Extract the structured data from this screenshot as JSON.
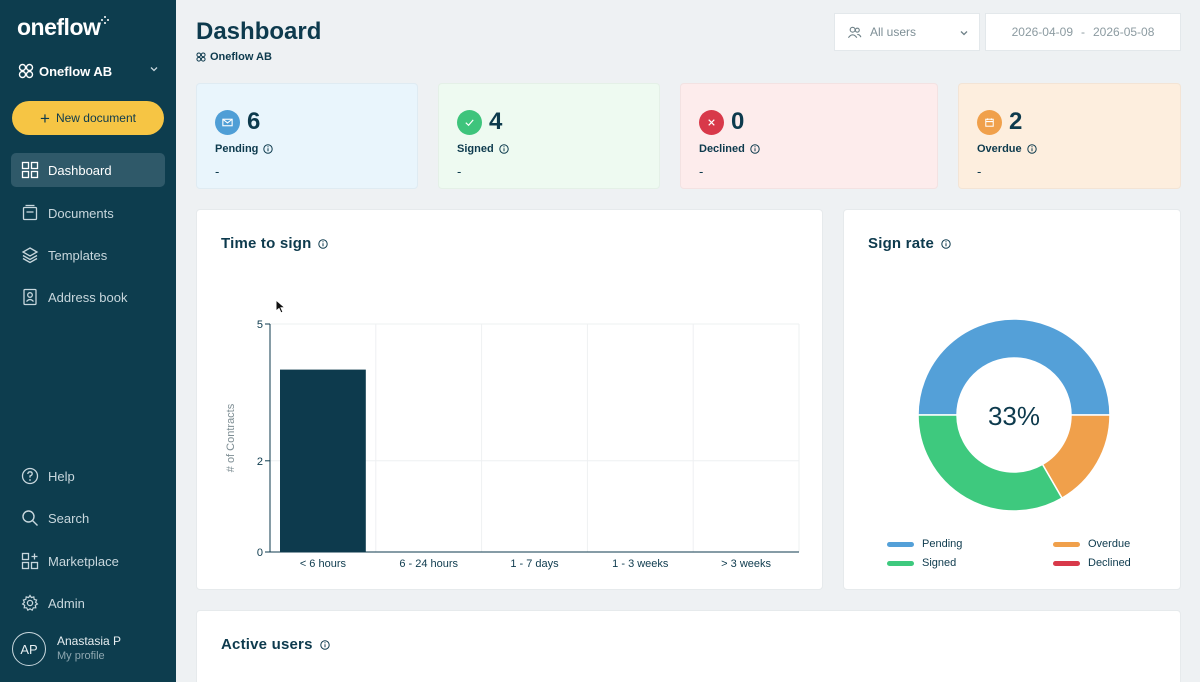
{
  "brand": {
    "logo_text": "oneflow"
  },
  "sidebar": {
    "org_name": "Oneflow AB",
    "new_document_label": "New document",
    "nav": [
      {
        "label": "Dashboard",
        "icon": "dashboard-icon",
        "active": true
      },
      {
        "label": "Documents",
        "icon": "documents-icon"
      },
      {
        "label": "Templates",
        "icon": "templates-icon"
      },
      {
        "label": "Address book",
        "icon": "address-book-icon"
      }
    ],
    "bottom_nav": [
      {
        "label": "Help",
        "icon": "help-icon"
      },
      {
        "label": "Search",
        "icon": "search-icon"
      },
      {
        "label": "Marketplace",
        "icon": "marketplace-icon"
      },
      {
        "label": "Admin",
        "icon": "gear-icon"
      }
    ],
    "profile": {
      "initials": "AP",
      "name": "Anastasia P",
      "subtitle": "My profile"
    }
  },
  "header": {
    "title": "Dashboard",
    "subtitle": "Oneflow AB",
    "users_filter": "All users",
    "date_from": "2026-04-09",
    "date_separator": "-",
    "date_to": "2026-05-08"
  },
  "stats": [
    {
      "count": "6",
      "label": "Pending",
      "sub": "-",
      "color": "#4f9ed6",
      "bg": "#e9f5fc"
    },
    {
      "count": "4",
      "label": "Signed",
      "sub": "-",
      "color": "#3ec47c",
      "bg": "#eefaf1"
    },
    {
      "count": "0",
      "label": "Declined",
      "sub": "-",
      "color": "#d8394a",
      "bg": "#fdecec"
    },
    {
      "count": "2",
      "label": "Overdue",
      "sub": "-",
      "color": "#f0a04b",
      "bg": "#fdeede"
    }
  ],
  "time_to_sign": {
    "title": "Time to sign",
    "chart_data": {
      "type": "bar",
      "categories": [
        "< 6 hours",
        "6 - 24 hours",
        "1 - 7 days",
        "1 - 3 weeks",
        "> 3 weeks"
      ],
      "values": [
        4,
        0,
        0,
        0,
        0
      ],
      "ylabel": "# of Contracts",
      "ylim": [
        0,
        5
      ],
      "yticks": [
        "0",
        "2",
        "5"
      ],
      "grid": true,
      "bar_color": "#0d3a4d"
    }
  },
  "sign_rate": {
    "title": "Sign rate",
    "center_label": "33%",
    "chart_data": {
      "type": "pie",
      "categories": [
        "Pending",
        "Overdue",
        "Signed",
        "Declined"
      ],
      "values": [
        6,
        2,
        4,
        0
      ],
      "colors": [
        "#54a0d8",
        "#f0a04b",
        "#3ec97e",
        "#d8394a"
      ]
    },
    "legend": [
      {
        "label": "Pending",
        "color": "#54a0d8"
      },
      {
        "label": "Overdue",
        "color": "#f0a04b"
      },
      {
        "label": "Signed",
        "color": "#3ec97e"
      },
      {
        "label": "Declined",
        "color": "#d8394a"
      }
    ]
  },
  "active_users": {
    "title": "Active users"
  }
}
